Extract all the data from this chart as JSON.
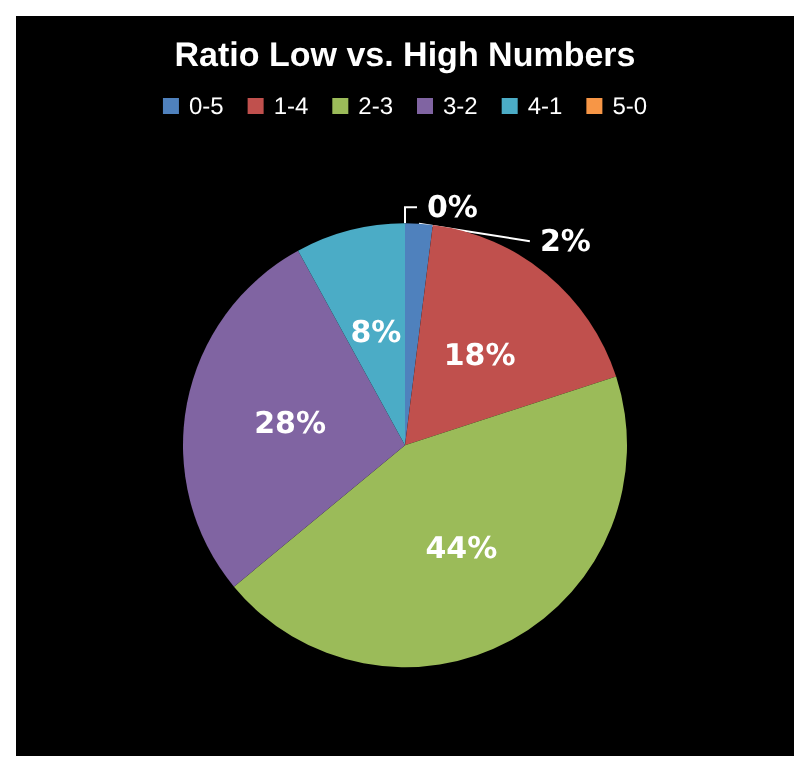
{
  "chart_data": {
    "type": "pie",
    "title": "Ratio Low vs. High Numbers",
    "categories": [
      "0-5",
      "1-4",
      "2-3",
      "3-2",
      "4-1",
      "5-0"
    ],
    "values": [
      2,
      18,
      44,
      28,
      8,
      0
    ],
    "colors": [
      "#4f81bd",
      "#c0504d",
      "#9bbb59",
      "#8064a2",
      "#4bacc6",
      "#f79646"
    ],
    "value_labels": [
      "2%",
      "18%",
      "44%",
      "28%",
      "8%",
      "0%"
    ],
    "legend": "top"
  }
}
